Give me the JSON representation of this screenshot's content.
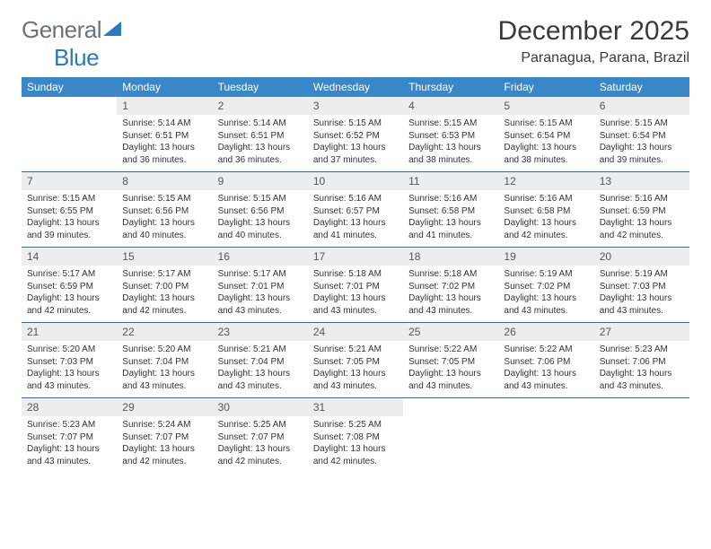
{
  "brand": {
    "part1": "General",
    "part2": "Blue"
  },
  "title": "December 2025",
  "location": "Paranagua, Parana, Brazil",
  "headers": [
    "Sunday",
    "Monday",
    "Tuesday",
    "Wednesday",
    "Thursday",
    "Friday",
    "Saturday"
  ],
  "colors": {
    "header_bg": "#3a87c8",
    "header_text": "#ffffff",
    "row_border": "#2f6aa0",
    "daynum_bg": "#ebedee",
    "brand_blue": "#2e79b8",
    "text": "#333333",
    "background": "#ffffff"
  },
  "weeks": [
    [
      {
        "day": "",
        "sunrise": "",
        "sunset": "",
        "daylight": ""
      },
      {
        "day": "1",
        "sunrise": "Sunrise: 5:14 AM",
        "sunset": "Sunset: 6:51 PM",
        "daylight": "Daylight: 13 hours and 36 minutes."
      },
      {
        "day": "2",
        "sunrise": "Sunrise: 5:14 AM",
        "sunset": "Sunset: 6:51 PM",
        "daylight": "Daylight: 13 hours and 36 minutes."
      },
      {
        "day": "3",
        "sunrise": "Sunrise: 5:15 AM",
        "sunset": "Sunset: 6:52 PM",
        "daylight": "Daylight: 13 hours and 37 minutes."
      },
      {
        "day": "4",
        "sunrise": "Sunrise: 5:15 AM",
        "sunset": "Sunset: 6:53 PM",
        "daylight": "Daylight: 13 hours and 38 minutes."
      },
      {
        "day": "5",
        "sunrise": "Sunrise: 5:15 AM",
        "sunset": "Sunset: 6:54 PM",
        "daylight": "Daylight: 13 hours and 38 minutes."
      },
      {
        "day": "6",
        "sunrise": "Sunrise: 5:15 AM",
        "sunset": "Sunset: 6:54 PM",
        "daylight": "Daylight: 13 hours and 39 minutes."
      }
    ],
    [
      {
        "day": "7",
        "sunrise": "Sunrise: 5:15 AM",
        "sunset": "Sunset: 6:55 PM",
        "daylight": "Daylight: 13 hours and 39 minutes."
      },
      {
        "day": "8",
        "sunrise": "Sunrise: 5:15 AM",
        "sunset": "Sunset: 6:56 PM",
        "daylight": "Daylight: 13 hours and 40 minutes."
      },
      {
        "day": "9",
        "sunrise": "Sunrise: 5:15 AM",
        "sunset": "Sunset: 6:56 PM",
        "daylight": "Daylight: 13 hours and 40 minutes."
      },
      {
        "day": "10",
        "sunrise": "Sunrise: 5:16 AM",
        "sunset": "Sunset: 6:57 PM",
        "daylight": "Daylight: 13 hours and 41 minutes."
      },
      {
        "day": "11",
        "sunrise": "Sunrise: 5:16 AM",
        "sunset": "Sunset: 6:58 PM",
        "daylight": "Daylight: 13 hours and 41 minutes."
      },
      {
        "day": "12",
        "sunrise": "Sunrise: 5:16 AM",
        "sunset": "Sunset: 6:58 PM",
        "daylight": "Daylight: 13 hours and 42 minutes."
      },
      {
        "day": "13",
        "sunrise": "Sunrise: 5:16 AM",
        "sunset": "Sunset: 6:59 PM",
        "daylight": "Daylight: 13 hours and 42 minutes."
      }
    ],
    [
      {
        "day": "14",
        "sunrise": "Sunrise: 5:17 AM",
        "sunset": "Sunset: 6:59 PM",
        "daylight": "Daylight: 13 hours and 42 minutes."
      },
      {
        "day": "15",
        "sunrise": "Sunrise: 5:17 AM",
        "sunset": "Sunset: 7:00 PM",
        "daylight": "Daylight: 13 hours and 42 minutes."
      },
      {
        "day": "16",
        "sunrise": "Sunrise: 5:17 AM",
        "sunset": "Sunset: 7:01 PM",
        "daylight": "Daylight: 13 hours and 43 minutes."
      },
      {
        "day": "17",
        "sunrise": "Sunrise: 5:18 AM",
        "sunset": "Sunset: 7:01 PM",
        "daylight": "Daylight: 13 hours and 43 minutes."
      },
      {
        "day": "18",
        "sunrise": "Sunrise: 5:18 AM",
        "sunset": "Sunset: 7:02 PM",
        "daylight": "Daylight: 13 hours and 43 minutes."
      },
      {
        "day": "19",
        "sunrise": "Sunrise: 5:19 AM",
        "sunset": "Sunset: 7:02 PM",
        "daylight": "Daylight: 13 hours and 43 minutes."
      },
      {
        "day": "20",
        "sunrise": "Sunrise: 5:19 AM",
        "sunset": "Sunset: 7:03 PM",
        "daylight": "Daylight: 13 hours and 43 minutes."
      }
    ],
    [
      {
        "day": "21",
        "sunrise": "Sunrise: 5:20 AM",
        "sunset": "Sunset: 7:03 PM",
        "daylight": "Daylight: 13 hours and 43 minutes."
      },
      {
        "day": "22",
        "sunrise": "Sunrise: 5:20 AM",
        "sunset": "Sunset: 7:04 PM",
        "daylight": "Daylight: 13 hours and 43 minutes."
      },
      {
        "day": "23",
        "sunrise": "Sunrise: 5:21 AM",
        "sunset": "Sunset: 7:04 PM",
        "daylight": "Daylight: 13 hours and 43 minutes."
      },
      {
        "day": "24",
        "sunrise": "Sunrise: 5:21 AM",
        "sunset": "Sunset: 7:05 PM",
        "daylight": "Daylight: 13 hours and 43 minutes."
      },
      {
        "day": "25",
        "sunrise": "Sunrise: 5:22 AM",
        "sunset": "Sunset: 7:05 PM",
        "daylight": "Daylight: 13 hours and 43 minutes."
      },
      {
        "day": "26",
        "sunrise": "Sunrise: 5:22 AM",
        "sunset": "Sunset: 7:06 PM",
        "daylight": "Daylight: 13 hours and 43 minutes."
      },
      {
        "day": "27",
        "sunrise": "Sunrise: 5:23 AM",
        "sunset": "Sunset: 7:06 PM",
        "daylight": "Daylight: 13 hours and 43 minutes."
      }
    ],
    [
      {
        "day": "28",
        "sunrise": "Sunrise: 5:23 AM",
        "sunset": "Sunset: 7:07 PM",
        "daylight": "Daylight: 13 hours and 43 minutes."
      },
      {
        "day": "29",
        "sunrise": "Sunrise: 5:24 AM",
        "sunset": "Sunset: 7:07 PM",
        "daylight": "Daylight: 13 hours and 42 minutes."
      },
      {
        "day": "30",
        "sunrise": "Sunrise: 5:25 AM",
        "sunset": "Sunset: 7:07 PM",
        "daylight": "Daylight: 13 hours and 42 minutes."
      },
      {
        "day": "31",
        "sunrise": "Sunrise: 5:25 AM",
        "sunset": "Sunset: 7:08 PM",
        "daylight": "Daylight: 13 hours and 42 minutes."
      },
      {
        "day": "",
        "sunrise": "",
        "sunset": "",
        "daylight": ""
      },
      {
        "day": "",
        "sunrise": "",
        "sunset": "",
        "daylight": ""
      },
      {
        "day": "",
        "sunrise": "",
        "sunset": "",
        "daylight": ""
      }
    ]
  ]
}
